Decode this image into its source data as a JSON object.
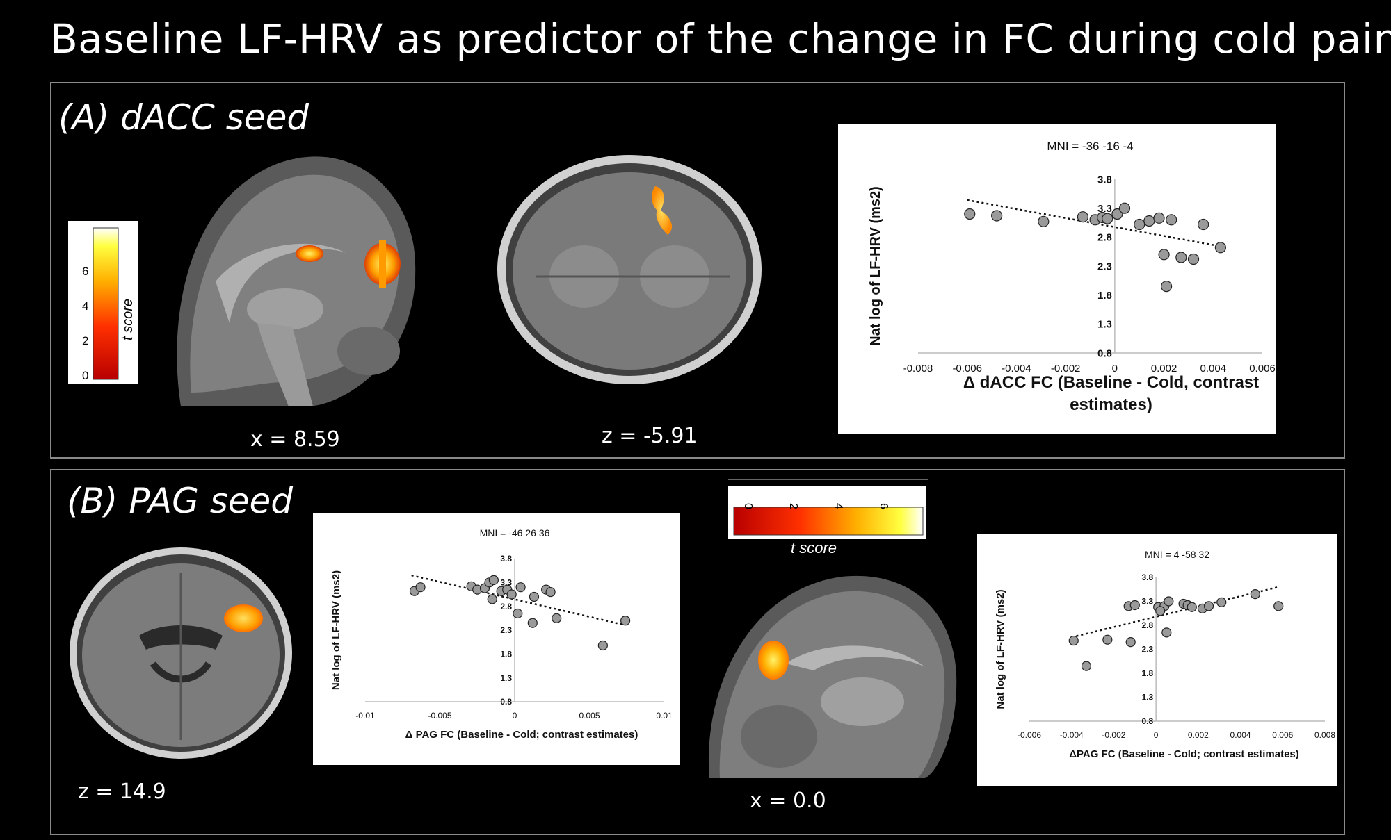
{
  "title": "Baseline LF-HRV as predictor of  the change in FC during cold pain",
  "panelA": {
    "label": "(A) dACC seed",
    "sagittal_coord": "x = 8.59",
    "axial_coord": "z =  -5.91",
    "colorbar": {
      "ticks": [
        "0",
        "2",
        "4",
        "6"
      ],
      "label": "t score"
    }
  },
  "panelB": {
    "label": "(B) PAG seed",
    "axial_coord": "z = 14.9",
    "sagittal_coord": "x = 0.0",
    "colorbar": {
      "ticks": [
        "0",
        "2",
        "4",
        "6"
      ],
      "label": "t score"
    }
  },
  "chart_data": [
    {
      "type": "scatter",
      "title": "MNI = -36 -16 -4",
      "ylabel": "Nat log of LF-HRV (ms2)",
      "xlabel_lines": [
        "Δ dACC FC (Baseline - Cold, contrast",
        "estimates)"
      ],
      "xlim": [
        -0.008,
        0.006
      ],
      "ylim": [
        0.8,
        3.8
      ],
      "xticks": [
        -0.008,
        -0.006,
        -0.004,
        -0.002,
        0,
        0.002,
        0.004,
        0.006
      ],
      "xtick_labels": [
        "-0.008",
        "-0.006",
        "-0.004",
        "-0.002",
        "0",
        "0.002",
        "0.004",
        "0.006"
      ],
      "yticks": [
        0.8,
        1.3,
        1.8,
        2.3,
        2.8,
        3.3,
        3.8
      ],
      "ytick_labels": [
        "0.8",
        "1.3",
        "1.8",
        "2.3",
        "2.8",
        "3.3",
        "3.8"
      ],
      "points": [
        [
          -0.0059,
          3.2
        ],
        [
          -0.0048,
          3.17
        ],
        [
          -0.0029,
          3.07
        ],
        [
          -0.0013,
          3.15
        ],
        [
          -0.0008,
          3.1
        ],
        [
          -0.0005,
          3.14
        ],
        [
          -0.0003,
          3.12
        ],
        [
          0.0001,
          3.2
        ],
        [
          0.0004,
          3.3
        ],
        [
          0.001,
          3.02
        ],
        [
          0.0014,
          3.08
        ],
        [
          0.0018,
          3.13
        ],
        [
          0.0023,
          3.1
        ],
        [
          0.0036,
          3.02
        ],
        [
          0.0043,
          2.62
        ],
        [
          0.002,
          2.5
        ],
        [
          0.0027,
          2.45
        ],
        [
          0.0032,
          2.42
        ],
        [
          0.0021,
          1.95
        ]
      ],
      "trendline": [
        [
          -0.006,
          3.44
        ],
        [
          0.0042,
          2.65
        ]
      ],
      "grid": false
    },
    {
      "type": "scatter",
      "title": "MNI = -46 26 36",
      "ylabel": "Nat log of LF-HRV (ms2)",
      "xlabel": "Δ PAG FC (Baseline - Cold; contrast estimates)",
      "xlim": [
        -0.01,
        0.01
      ],
      "ylim": [
        0.8,
        3.8
      ],
      "xticks": [
        -0.01,
        -0.005,
        0,
        0.005,
        0.01
      ],
      "xtick_labels": [
        "-0.01",
        "-0.005",
        "0",
        "0.005",
        "0.01"
      ],
      "yticks": [
        0.8,
        1.3,
        1.8,
        2.3,
        2.8,
        3.3,
        3.8
      ],
      "ytick_labels": [
        "0.8",
        "1.3",
        "1.8",
        "2.3",
        "2.8",
        "3.3",
        "3.8"
      ],
      "points": [
        [
          -0.0067,
          3.12
        ],
        [
          -0.0063,
          3.2
        ],
        [
          -0.0029,
          3.22
        ],
        [
          -0.0025,
          3.15
        ],
        [
          -0.002,
          3.18
        ],
        [
          -0.0017,
          3.3
        ],
        [
          -0.0014,
          3.35
        ],
        [
          -0.0009,
          3.12
        ],
        [
          -0.0005,
          3.15
        ],
        [
          -0.0002,
          3.05
        ],
        [
          0.0004,
          3.2
        ],
        [
          0.0013,
          3.0
        ],
        [
          0.0021,
          3.15
        ],
        [
          0.0024,
          3.1
        ],
        [
          0.0002,
          2.65
        ],
        [
          0.0012,
          2.45
        ],
        [
          0.0028,
          2.55
        ],
        [
          0.0059,
          1.98
        ],
        [
          0.0074,
          2.5
        ],
        [
          -0.0015,
          2.95
        ]
      ],
      "trendline": [
        [
          -0.0069,
          3.45
        ],
        [
          0.0072,
          2.42
        ]
      ],
      "grid": false
    },
    {
      "type": "scatter",
      "title": "MNI = 4 -58 32",
      "ylabel": "Nat log of LF-HRV (ms2)",
      "xlabel": "ΔPAG FC (Baseline - Cold; contrast estimates)",
      "xlim": [
        -0.006,
        0.008
      ],
      "ylim": [
        0.8,
        3.8
      ],
      "xticks": [
        -0.006,
        -0.004,
        -0.002,
        0,
        0.002,
        0.004,
        0.006,
        0.008
      ],
      "xtick_labels": [
        "-0.006",
        "-0.004",
        "-0.002",
        "0",
        "0.002",
        "0.004",
        "0.006",
        "0.008"
      ],
      "yticks": [
        0.8,
        1.3,
        1.8,
        2.3,
        2.8,
        3.3,
        3.8
      ],
      "ytick_labels": [
        "0.8",
        "1.3",
        "1.8",
        "2.3",
        "2.8",
        "3.3",
        "3.8"
      ],
      "points": [
        [
          -0.0039,
          2.48
        ],
        [
          -0.0033,
          1.95
        ],
        [
          -0.0023,
          2.5
        ],
        [
          -0.0013,
          3.2
        ],
        [
          -0.001,
          3.22
        ],
        [
          -0.0012,
          2.45
        ],
        [
          0.0001,
          3.18
        ],
        [
          0.0004,
          3.2
        ],
        [
          0.0006,
          3.3
        ],
        [
          0.0013,
          3.25
        ],
        [
          0.0015,
          3.22
        ],
        [
          0.0017,
          3.18
        ],
        [
          0.0022,
          3.15
        ],
        [
          0.0025,
          3.2
        ],
        [
          0.0031,
          3.28
        ],
        [
          0.0047,
          3.45
        ],
        [
          0.0058,
          3.2
        ],
        [
          0.0005,
          2.65
        ],
        [
          0.0002,
          3.1
        ]
      ],
      "trendline": [
        [
          -0.004,
          2.55
        ],
        [
          0.0058,
          3.6
        ]
      ],
      "grid": false
    }
  ]
}
